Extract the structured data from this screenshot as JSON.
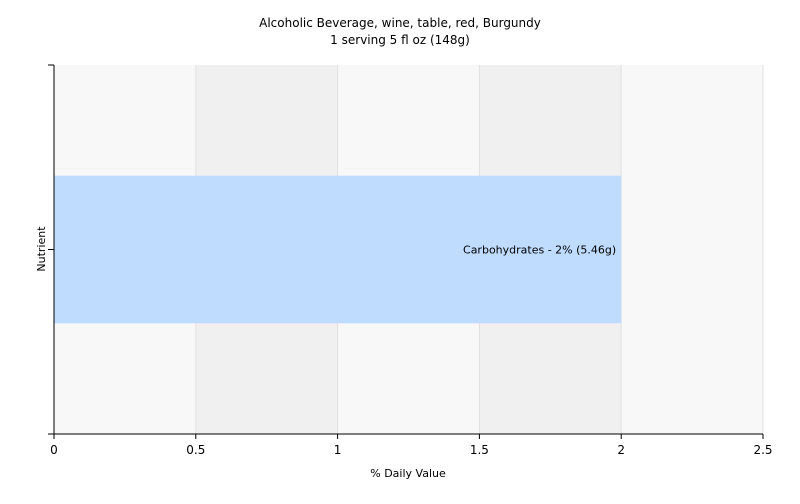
{
  "chart_data": {
    "type": "bar",
    "orientation": "horizontal",
    "title": "Alcoholic Beverage, wine, table, red, Burgundy",
    "subtitle": "1 serving 5 fl oz (148g)",
    "xlabel": "% Daily Value",
    "ylabel": "Nutrient",
    "xlim": [
      0,
      2.5
    ],
    "x_ticks": [
      {
        "value": 0,
        "label": "0"
      },
      {
        "value": 0.5,
        "label": "0.5"
      },
      {
        "value": 1,
        "label": "1"
      },
      {
        "value": 1.5,
        "label": "1.5"
      },
      {
        "value": 2,
        "label": "2"
      },
      {
        "value": 2.5,
        "label": "2.5"
      }
    ],
    "grid": true,
    "legend": "none",
    "bars": [
      {
        "category": "Carbohydrates",
        "value": 2,
        "label": "Carbohydrates - 2% (5.46g)",
        "color": "#bfdcff"
      }
    ],
    "colors": {
      "plot_band_light": "#f8f8f8",
      "plot_band_dark": "#f0f0f0",
      "gridline": "#e0e0e0",
      "axis": "#000000"
    }
  }
}
